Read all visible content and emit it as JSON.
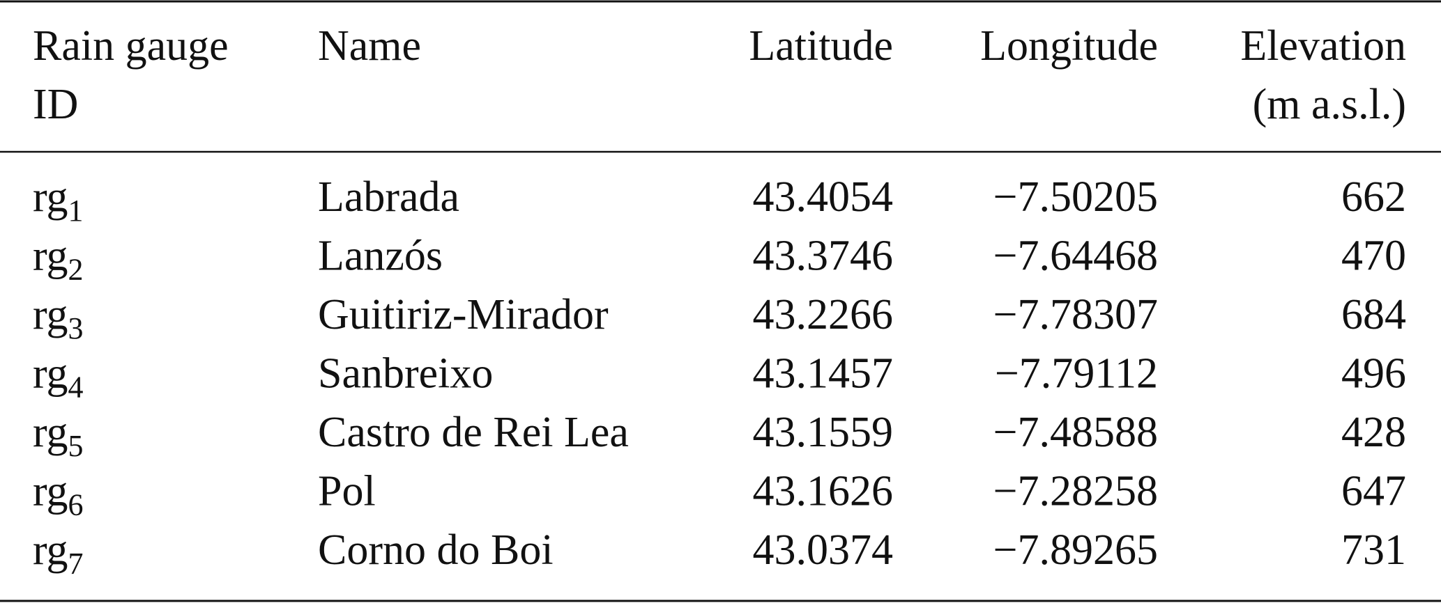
{
  "table": {
    "header": [
      [
        "Rain gauge",
        "ID"
      ],
      [
        "Name"
      ],
      [
        "Latitude"
      ],
      [
        "Longitude"
      ],
      [
        "Elevation",
        "(m a.s.l.)"
      ]
    ],
    "rows": [
      [
        {
          "base": "rg",
          "sub": "1"
        },
        "Labrada",
        "43.4054",
        "−7.50205",
        "662"
      ],
      [
        {
          "base": "rg",
          "sub": "2"
        },
        "Lanzós",
        "43.3746",
        "−7.64468",
        "470"
      ],
      [
        {
          "base": "rg",
          "sub": "3"
        },
        "Guitiriz-Mirador",
        "43.2266",
        "−7.78307",
        "684"
      ],
      [
        {
          "base": "rg",
          "sub": "4"
        },
        "Sanbreixo",
        "43.1457",
        "−7.79112",
        "496"
      ],
      [
        {
          "base": "rg",
          "sub": "5"
        },
        "Castro de Rei Lea",
        "43.1559",
        "−7.48588",
        "428"
      ],
      [
        {
          "base": "rg",
          "sub": "6"
        },
        "Pol",
        "43.1626",
        "−7.28258",
        "647"
      ],
      [
        {
          "base": "rg",
          "sub": "7"
        },
        "Corno do Boi",
        "43.0374",
        "−7.89265",
        "731"
      ]
    ]
  }
}
